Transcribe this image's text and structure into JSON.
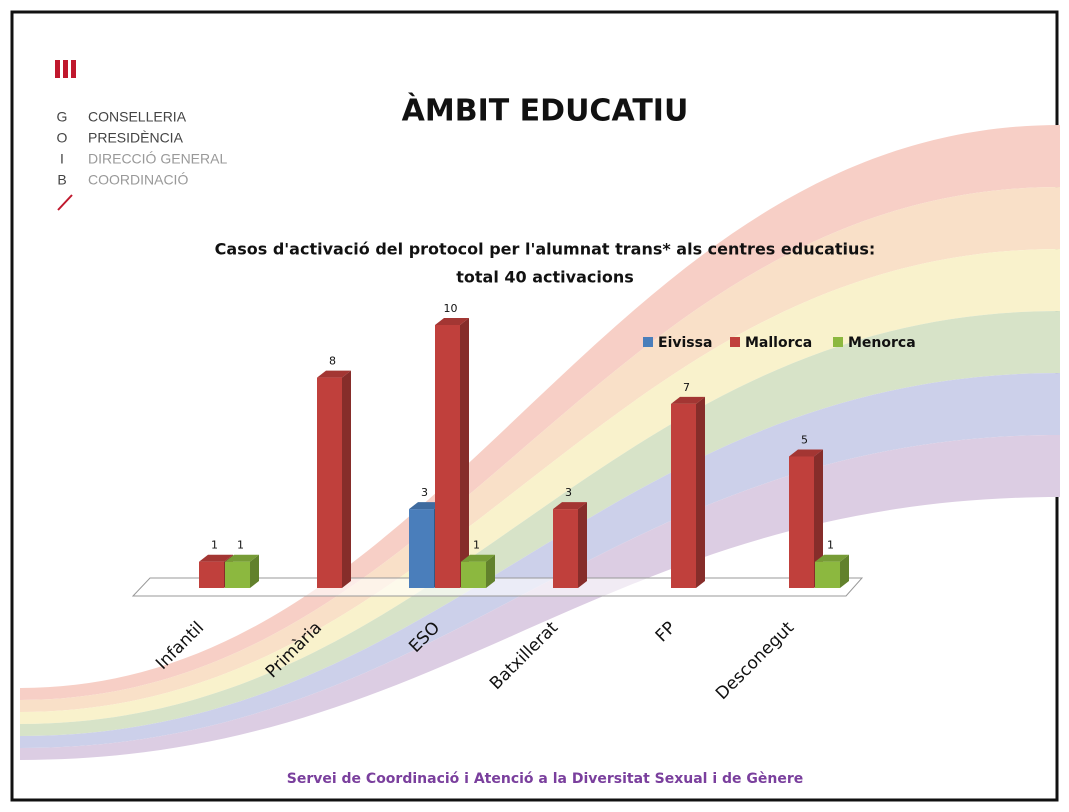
{
  "header": {
    "logo": [
      {
        "letter": "G",
        "text": "CONSELLERIA"
      },
      {
        "letter": "O",
        "text": "PRESIDÈNCIA"
      },
      {
        "letter": "I",
        "text": "DIRECCIÓ GENERAL"
      },
      {
        "letter": "B",
        "text": "COORDINACIÓ"
      }
    ],
    "title": "ÀMBIT EDUCATIU"
  },
  "chart_data": {
    "type": "bar3d",
    "title": [
      "Casos d'activació del protocol per l'alumnat trans* als centres educatius:",
      "total 40 activacions"
    ],
    "categories": [
      "Infantil",
      "Primària",
      "ESO",
      "Batxillerat",
      "FP",
      "Desconegut"
    ],
    "series": [
      {
        "name": "Eivissa",
        "color": "#4a7ebb",
        "values": [
          null,
          null,
          3,
          null,
          null,
          null
        ]
      },
      {
        "name": "Mallorca",
        "color": "#c0403c",
        "values": [
          1,
          8,
          10,
          3,
          7,
          5
        ]
      },
      {
        "name": "Menorca",
        "color": "#8cb83f",
        "values": [
          1,
          null,
          1,
          null,
          null,
          1
        ]
      }
    ],
    "legend": "top-right"
  },
  "footer": "Servei de Coordinació i Atenció a la Diversitat Sexual i de Gènere"
}
